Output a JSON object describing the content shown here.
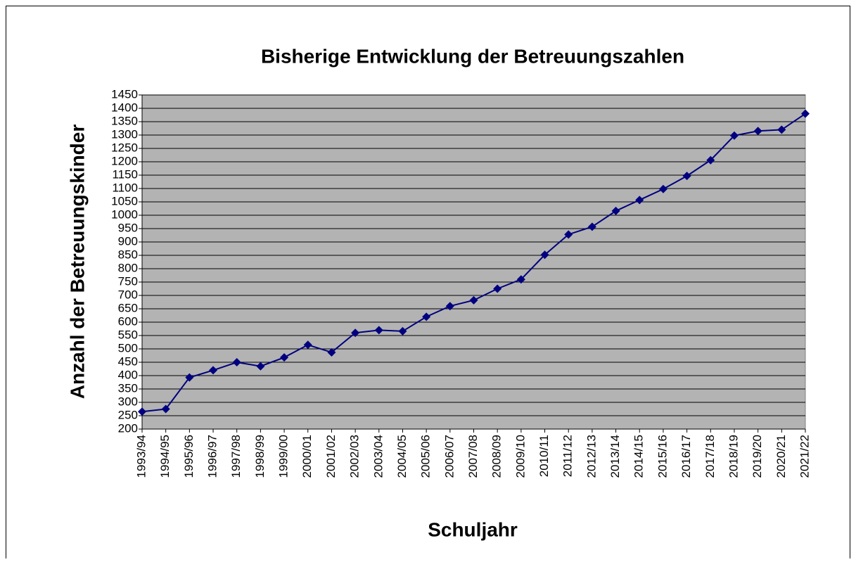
{
  "chart_data": {
    "type": "line",
    "title": "Bisherige Entwicklung der Betreuungszahlen",
    "x_label": "Schuljahr",
    "y_label": "Anzahl der Betreuungskinder",
    "categories": [
      "1993/94",
      "1994/95",
      "1995/96",
      "1996/97",
      "1997/98",
      "1998/99",
      "1999/00",
      "2000/01",
      "2001/02",
      "2002/03",
      "2003/04",
      "2004/05",
      "2005/06",
      "2006/07",
      "2007/08",
      "2008/09",
      "2009/10",
      "2010/11",
      "2011/12",
      "2012/13",
      "2013/14",
      "2014/15",
      "2015/16",
      "2016/17",
      "2017/18",
      "2018/19",
      "2019/20",
      "2020/21",
      "2021/22"
    ],
    "values": [
      265,
      275,
      393,
      420,
      450,
      435,
      468,
      515,
      487,
      560,
      570,
      566,
      620,
      660,
      682,
      725,
      760,
      852,
      928,
      957,
      1016,
      1057,
      1098,
      1147,
      1206,
      1298,
      1315,
      1320,
      1380
    ],
    "color": "#000080",
    "ylim": [
      200,
      1450
    ],
    "yticks": [
      200,
      250,
      300,
      350,
      400,
      450,
      500,
      550,
      600,
      650,
      700,
      750,
      800,
      850,
      900,
      950,
      1000,
      1050,
      1100,
      1150,
      1200,
      1250,
      1300,
      1350,
      1400,
      1450
    ],
    "grid": true
  }
}
